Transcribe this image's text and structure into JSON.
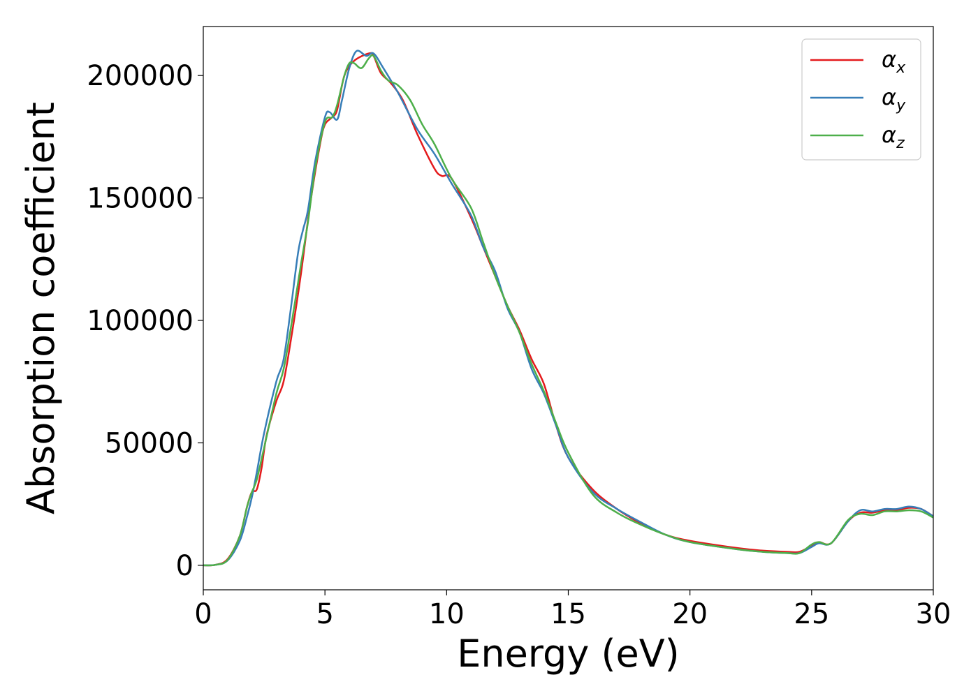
{
  "chart_data": {
    "type": "line",
    "title": "",
    "xlabel": "Energy (eV)",
    "ylabel": "Absorption coefficient",
    "xlim": [
      0,
      30
    ],
    "ylim": [
      -10000,
      220000
    ],
    "xticks": [
      0,
      5,
      10,
      15,
      20,
      25,
      30
    ],
    "yticks": [
      0,
      50000,
      100000,
      150000,
      200000
    ],
    "xtick_labels": [
      "0",
      "5",
      "10",
      "15",
      "20",
      "25",
      "30"
    ],
    "ytick_labels": [
      "0",
      "50000",
      "100000",
      "150000",
      "200000"
    ],
    "grid": false,
    "legend_position": "top-right",
    "series": [
      {
        "name": "αx",
        "name_base": "α",
        "name_sub": "x",
        "color": "#e41a1c",
        "x": [
          0,
          0.5,
          1.0,
          1.5,
          1.8,
          2.0,
          2.2,
          2.4,
          2.6,
          3.0,
          3.3,
          3.6,
          4.0,
          4.4,
          4.8,
          5.0,
          5.3,
          5.5,
          5.8,
          6.2,
          6.8,
          7.0,
          7.3,
          7.7,
          8.2,
          8.8,
          9.5,
          9.8,
          10.2,
          11.0,
          11.5,
          12.0,
          12.5,
          13.0,
          13.5,
          14.0,
          14.5,
          15.0,
          16.0,
          17.0,
          18.0,
          19.0,
          20.0,
          22.0,
          23.0,
          24.0,
          24.5,
          25.0,
          25.3,
          25.8,
          26.5,
          27.0,
          27.5,
          28.0,
          28.5,
          29.0,
          29.5,
          30.0
        ],
        "y": [
          0,
          200,
          2500,
          12000,
          24000,
          30000,
          31000,
          40000,
          53000,
          67000,
          75000,
          92000,
          118000,
          148000,
          172000,
          180000,
          183000,
          186000,
          200000,
          206000,
          209000,
          208000,
          201000,
          197000,
          190000,
          176000,
          162000,
          159000,
          158000,
          142000,
          130000,
          118000,
          106000,
          96000,
          84000,
          74000,
          57000,
          44000,
          31000,
          23000,
          17000,
          12500,
          10000,
          7000,
          6000,
          5500,
          5500,
          8000,
          9500,
          9000,
          18000,
          21500,
          21500,
          22500,
          22500,
          23500,
          23000,
          20000
        ]
      },
      {
        "name": "αy",
        "name_base": "α",
        "name_sub": "y",
        "color": "#377eb8",
        "x": [
          0,
          0.5,
          1.0,
          1.5,
          1.8,
          2.0,
          2.2,
          2.5,
          3.0,
          3.3,
          3.6,
          3.9,
          4.1,
          4.3,
          4.6,
          5.0,
          5.2,
          5.5,
          5.7,
          6.0,
          6.3,
          6.7,
          7.0,
          7.4,
          8.0,
          8.8,
          9.5,
          10.2,
          11.0,
          11.5,
          12.0,
          12.5,
          13.0,
          13.5,
          14.0,
          14.5,
          15.0,
          16.0,
          17.0,
          18.0,
          19.0,
          20.0,
          22.0,
          23.0,
          24.0,
          24.5,
          25.0,
          25.3,
          25.8,
          26.5,
          27.0,
          27.5,
          28.0,
          28.5,
          29.0,
          29.5,
          30.0
        ],
        "y": [
          0,
          200,
          2000,
          10000,
          20000,
          28000,
          38000,
          54000,
          75000,
          84000,
          105000,
          128000,
          137000,
          145000,
          165000,
          183000,
          185000,
          182000,
          190000,
          203000,
          210000,
          208000,
          209000,
          203000,
          193000,
          178000,
          168000,
          156000,
          143000,
          130000,
          120000,
          105000,
          95000,
          80000,
          70000,
          57000,
          44000,
          30000,
          23000,
          17500,
          12500,
          9500,
          6500,
          5500,
          5000,
          5000,
          7500,
          9000,
          9000,
          18000,
          22500,
          22000,
          23000,
          23000,
          24000,
          23000,
          20000
        ]
      },
      {
        "name": "αz",
        "name_base": "α",
        "name_sub": "z",
        "color": "#4daf4a",
        "x": [
          0,
          0.5,
          1.0,
          1.5,
          1.8,
          2.0,
          2.2,
          2.5,
          3.0,
          3.3,
          3.6,
          4.0,
          4.3,
          4.6,
          5.0,
          5.3,
          5.5,
          5.8,
          6.0,
          6.2,
          6.5,
          6.8,
          7.0,
          7.3,
          7.6,
          8.0,
          8.5,
          9.0,
          9.5,
          10.2,
          11.0,
          11.5,
          12.0,
          12.5,
          13.0,
          13.5,
          14.0,
          14.5,
          15.0,
          16.0,
          17.0,
          18.0,
          19.0,
          20.0,
          22.0,
          23.0,
          24.0,
          24.5,
          25.0,
          25.3,
          25.8,
          26.5,
          27.0,
          27.5,
          28.0,
          28.5,
          29.0,
          29.5,
          30.0
        ],
        "y": [
          0,
          200,
          2200,
          12000,
          24000,
          30000,
          35000,
          48000,
          70000,
          80000,
          97000,
          122000,
          140000,
          162000,
          181000,
          183000,
          188000,
          200000,
          205000,
          205000,
          203000,
          207000,
          208000,
          202000,
          198000,
          196000,
          190000,
          180000,
          172000,
          158000,
          146000,
          132000,
          118000,
          106000,
          95000,
          82000,
          71000,
          58000,
          46000,
          29000,
          21500,
          16500,
          12500,
          9500,
          6500,
          5500,
          5000,
          5000,
          8500,
          9500,
          9000,
          18500,
          21000,
          20500,
          22000,
          22000,
          22500,
          22000,
          19500
        ]
      }
    ]
  }
}
